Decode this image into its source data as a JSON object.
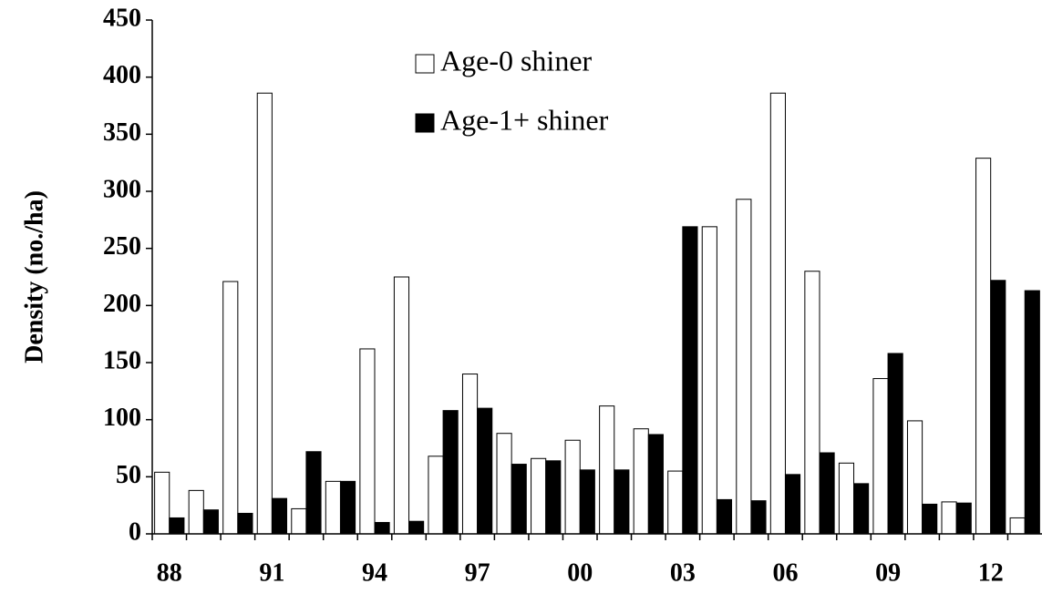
{
  "chart_data": {
    "type": "bar",
    "y_label": "Density (no./ha)",
    "categories": [
      "88",
      null,
      null,
      "91",
      null,
      null,
      "94",
      null,
      null,
      "97",
      null,
      null,
      "00",
      null,
      null,
      "03",
      null,
      null,
      "06",
      null,
      null,
      "09",
      null,
      null,
      "12",
      null
    ],
    "series": [
      {
        "name": "Age-0 shiner",
        "color": "#ffffff",
        "values": [
          54,
          38,
          221,
          386,
          22,
          46,
          162,
          225,
          68,
          140,
          88,
          66,
          82,
          112,
          92,
          55,
          269,
          293,
          386,
          230,
          62,
          136,
          99,
          28,
          329,
          14
        ]
      },
      {
        "name": "Age-1+ shiner",
        "color": "#000000",
        "values": [
          14,
          21,
          18,
          31,
          72,
          46,
          10,
          11,
          108,
          110,
          61,
          64,
          56,
          56,
          87,
          269,
          30,
          29,
          52,
          71,
          44,
          158,
          26,
          27,
          222,
          213
        ]
      }
    ],
    "ylim": [
      0,
      450
    ],
    "yticks": [
      0,
      50,
      100,
      150,
      200,
      250,
      300,
      350,
      400,
      450
    ],
    "grid": false
  }
}
